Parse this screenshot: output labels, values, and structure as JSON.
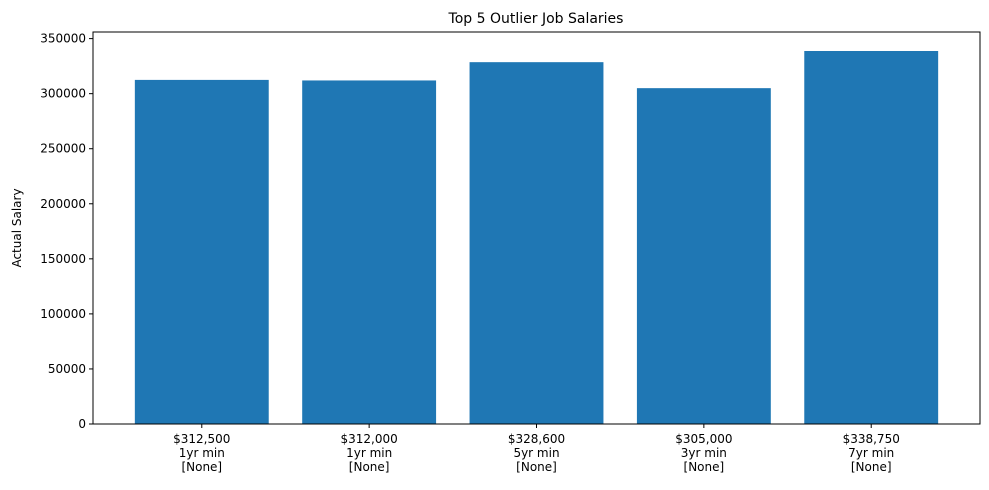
{
  "chart_data": {
    "type": "bar",
    "title": "Top 5 Outlier Job Salaries",
    "xlabel": "",
    "ylabel": "Actual Salary",
    "categories": [
      [
        "$312,500",
        "1yr min",
        "[None]"
      ],
      [
        "$312,000",
        "1yr min",
        "[None]"
      ],
      [
        "$328,600",
        "5yr min",
        "[None]"
      ],
      [
        "$305,000",
        "3yr min",
        "[None]"
      ],
      [
        "$338,750",
        "7yr min",
        "[None]"
      ]
    ],
    "values": [
      312500,
      312000,
      328600,
      305000,
      338750
    ],
    "ylim": [
      0,
      356000
    ],
    "yticks": [
      0,
      50000,
      100000,
      150000,
      200000,
      250000,
      300000,
      350000
    ],
    "ytick_labels": [
      "0",
      "50000",
      "100000",
      "150000",
      "200000",
      "250000",
      "300000",
      "350000"
    ],
    "bar_color": "#1f77b4",
    "grid": false,
    "legend": "none"
  }
}
